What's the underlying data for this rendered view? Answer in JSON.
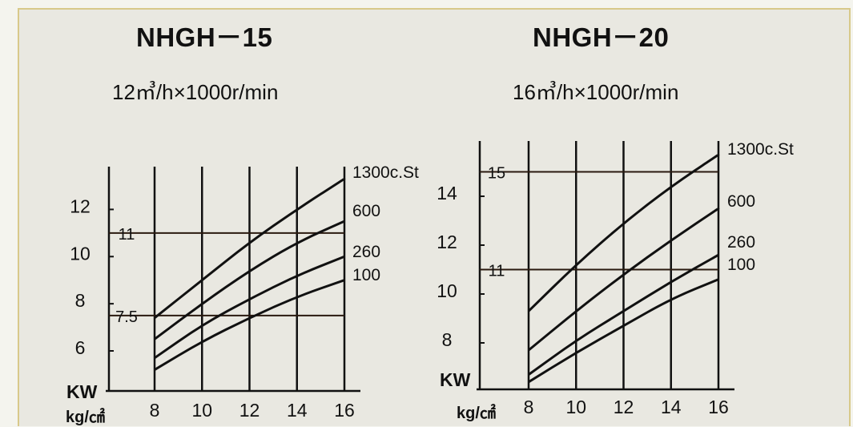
{
  "chart_data": [
    {
      "type": "line",
      "title": "NHGH－15",
      "subtitle": "12㎥/h×1000r/min",
      "xlabel": "kg/㎠",
      "ylabel": "KW",
      "x_ticks": [
        "8",
        "10",
        "12",
        "14",
        "16"
      ],
      "y_ticks": [
        "6",
        "8",
        "10",
        "12"
      ],
      "xlim": [
        8,
        16
      ],
      "ylim": [
        5,
        13.2
      ],
      "reference_lines": [
        {
          "y": 11,
          "label": "11"
        },
        {
          "y": 7.5,
          "label": "7.5"
        }
      ],
      "series": [
        {
          "name": "1300c.St",
          "x": [
            8,
            10,
            12,
            14,
            16
          ],
          "y": [
            7.4,
            9.0,
            10.6,
            12.0,
            13.3
          ]
        },
        {
          "name": "600",
          "x": [
            8,
            10,
            12,
            14,
            16
          ],
          "y": [
            6.5,
            8.0,
            9.4,
            10.6,
            11.5
          ]
        },
        {
          "name": "260",
          "x": [
            8,
            10,
            12,
            14,
            16
          ],
          "y": [
            5.7,
            7.1,
            8.2,
            9.2,
            10.0
          ]
        },
        {
          "name": "100",
          "x": [
            8,
            10,
            12,
            14,
            16
          ],
          "y": [
            5.2,
            6.4,
            7.4,
            8.3,
            9.0
          ]
        }
      ]
    },
    {
      "type": "line",
      "title": "NHGH－20",
      "subtitle": "16㎥/h×1000r/min",
      "xlabel": "kg/㎠",
      "ylabel": "KW",
      "x_ticks": [
        "8",
        "10",
        "12",
        "14",
        "16"
      ],
      "y_ticks": [
        "8",
        "10",
        "12",
        "14"
      ],
      "xlim": [
        8,
        16
      ],
      "ylim": [
        6.7,
        16
      ],
      "reference_lines": [
        {
          "y": 15,
          "label": "15"
        },
        {
          "y": 11,
          "label": "11"
        }
      ],
      "series": [
        {
          "name": "1300c.St",
          "x": [
            8,
            10,
            12,
            14,
            16
          ],
          "y": [
            9.3,
            11.2,
            12.9,
            14.4,
            15.7
          ]
        },
        {
          "name": "600",
          "x": [
            8,
            10,
            12,
            14,
            16
          ],
          "y": [
            7.7,
            9.3,
            10.8,
            12.2,
            13.5
          ]
        },
        {
          "name": "260",
          "x": [
            8,
            10,
            12,
            14,
            16
          ],
          "y": [
            6.7,
            8.1,
            9.3,
            10.5,
            11.6
          ]
        },
        {
          "name": "100",
          "x": [
            8,
            10,
            12,
            14,
            16
          ],
          "y": [
            6.4,
            7.6,
            8.7,
            9.8,
            10.6
          ]
        }
      ]
    }
  ]
}
